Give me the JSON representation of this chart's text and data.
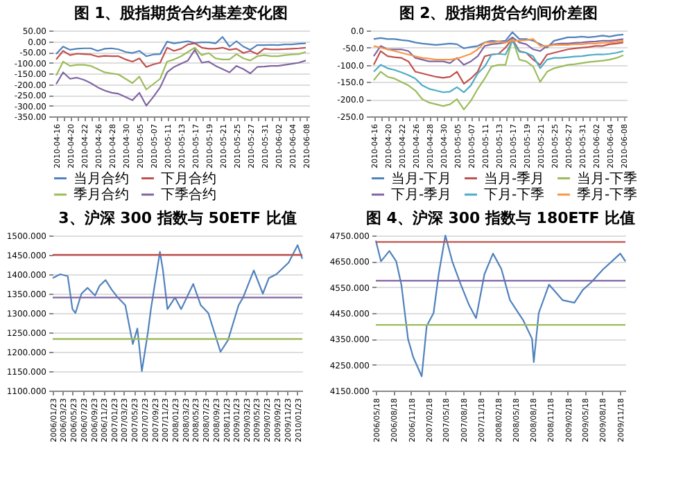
{
  "chart_data": [
    {
      "type": "line",
      "title": "图 1、股指期货合约基差变化图",
      "categories": [
        "2010-04-16",
        null,
        "2010-04-20",
        null,
        "2010-04-22",
        null,
        "2010-04-26",
        null,
        "2010-04-28",
        null,
        "2010-04-30",
        null,
        "2010-05-05",
        null,
        "2010-05-07",
        null,
        "2010-05-11",
        null,
        "2010-05-13",
        null,
        "2010-05-17",
        null,
        "2010-05-19",
        null,
        "2010-05-21",
        null,
        "2010-05-25",
        null,
        "2010-05-27",
        null,
        "2010-05-31",
        null,
        "2010-06-02",
        null,
        "2010-06-04",
        null,
        "2010-06-08"
      ],
      "series": [
        {
          "name": "当月合约",
          "color": "#4f81bd",
          "values": [
            -60,
            -25,
            -40,
            -35,
            -33,
            -33,
            -45,
            -35,
            -33,
            -38,
            -50,
            -55,
            -45,
            -70,
            -62,
            -60,
            -2,
            -10,
            -5,
            0,
            -8,
            -5,
            -5,
            -10,
            20,
            -25,
            0,
            -25,
            -40,
            -18,
            -18,
            -17,
            -18,
            -15,
            -15,
            -12,
            -10
          ]
        },
        {
          "name": "下月合约",
          "color": "#c0504d",
          "values": [
            -85,
            -45,
            -65,
            -58,
            -60,
            -62,
            -72,
            -68,
            -70,
            -70,
            -85,
            -95,
            -80,
            -120,
            -108,
            -100,
            -30,
            -45,
            -35,
            -15,
            -10,
            -30,
            -35,
            -35,
            -30,
            -40,
            -35,
            -55,
            -45,
            -60,
            -35,
            -38,
            -38,
            -37,
            -35,
            -33,
            -30
          ]
        },
        {
          "name": "季月合约",
          "color": "#9bbb59",
          "values": [
            -160,
            -95,
            -115,
            -110,
            -110,
            -115,
            -130,
            -145,
            -150,
            -155,
            -175,
            -195,
            -165,
            -225,
            -200,
            -175,
            -95,
            -85,
            -70,
            -50,
            -30,
            -65,
            -55,
            -80,
            -85,
            -85,
            -60,
            -80,
            -90,
            -70,
            -65,
            -70,
            -70,
            -65,
            -62,
            -60,
            -50
          ]
        },
        {
          "name": "下季合约",
          "color": "#8064a2",
          "values": [
            -200,
            -145,
            -175,
            -170,
            -180,
            -195,
            -215,
            -230,
            -240,
            -245,
            -260,
            -275,
            -240,
            -300,
            -260,
            -215,
            -145,
            -120,
            -105,
            -90,
            -40,
            -100,
            -95,
            -115,
            -130,
            -145,
            -115,
            -130,
            -150,
            -120,
            -118,
            -115,
            -115,
            -110,
            -105,
            -100,
            -90
          ]
        }
      ],
      "ylim": [
        -350,
        50
      ],
      "yticks": [
        {
          "value": 50,
          "label": "50.00"
        },
        {
          "value": 0,
          "label": "0.00"
        },
        {
          "value": -50,
          "label": "-50.00"
        },
        {
          "value": -100,
          "label": "-100.00"
        },
        {
          "value": -150,
          "label": "-150.00"
        },
        {
          "value": -200,
          "label": "-200.00"
        },
        {
          "value": -250,
          "label": "-250.00"
        },
        {
          "value": -300,
          "label": "-300.00"
        },
        {
          "value": -350,
          "label": "-350.00"
        }
      ],
      "grid": "y",
      "legend": "bottom"
    },
    {
      "type": "line",
      "title": "图 2、股指期货合约间价差图",
      "categories": [
        "2010-04-16",
        null,
        "2010-04-20",
        null,
        "2010-04-22",
        null,
        "2010-04-26",
        null,
        "2010-04-28",
        null,
        "2010-04-30",
        null,
        "2010-05-05",
        null,
        "2010-05-07",
        null,
        "2010-05-11",
        null,
        "2010-05-13",
        null,
        "2010-05-17",
        null,
        "2010-05-19",
        null,
        "2010-05-21",
        null,
        "2010-05-25",
        null,
        "2010-05-27",
        null,
        "2010-05-31",
        null,
        "2010-06-02",
        null,
        "2010-06-04",
        null,
        "2010-06-08"
      ],
      "series": [
        {
          "name": "当月-下月",
          "color": "#4f81bd",
          "values": [
            -25,
            -22,
            -25,
            -25,
            -28,
            -30,
            -35,
            -38,
            -40,
            -42,
            -40,
            -38,
            -40,
            -52,
            -48,
            -45,
            -35,
            -30,
            -32,
            -30,
            -5,
            -25,
            -25,
            -30,
            -40,
            -50,
            -30,
            -25,
            -20,
            -20,
            -18,
            -20,
            -18,
            -15,
            -18,
            -14,
            -12
          ]
        },
        {
          "name": "当月-季月",
          "color": "#c0504d",
          "values": [
            -100,
            -60,
            -75,
            -78,
            -80,
            -90,
            -120,
            -125,
            -130,
            -135,
            -138,
            -135,
            -120,
            -155,
            -140,
            -120,
            -75,
            -70,
            -68,
            -50,
            -25,
            -60,
            -65,
            -85,
            -100,
            -70,
            -65,
            -60,
            -55,
            -52,
            -50,
            -48,
            -45,
            -45,
            -40,
            -38,
            -35
          ]
        },
        {
          "name": "当月-下季",
          "color": "#9bbb59",
          "values": [
            -145,
            -120,
            -135,
            -140,
            -150,
            -160,
            -175,
            -200,
            -210,
            -215,
            -220,
            -215,
            -200,
            -230,
            -205,
            -170,
            -140,
            -105,
            -100,
            -100,
            -25,
            -85,
            -90,
            -105,
            -150,
            -120,
            -110,
            -105,
            -100,
            -98,
            -95,
            -92,
            -90,
            -88,
            -85,
            -80,
            -72
          ]
        },
        {
          "name": "下月-季月",
          "color": "#8064a2",
          "values": [
            -75,
            -45,
            -55,
            -55,
            -55,
            -60,
            -80,
            -85,
            -90,
            -90,
            -90,
            -95,
            -80,
            -100,
            -90,
            -75,
            -45,
            -40,
            -38,
            -35,
            -20,
            -35,
            -40,
            -55,
            -60,
            -45,
            -40,
            -38,
            -38,
            -36,
            -35,
            -33,
            -32,
            -30,
            -30,
            -28,
            -25
          ]
        },
        {
          "name": "下月-下季",
          "color": "#4bacc6",
          "values": [
            -120,
            -100,
            -110,
            -115,
            -122,
            -130,
            -140,
            -160,
            -170,
            -175,
            -180,
            -178,
            -165,
            -180,
            -160,
            -125,
            -105,
            -70,
            -68,
            -70,
            -30,
            -62,
            -65,
            -75,
            -110,
            -85,
            -80,
            -80,
            -78,
            -76,
            -75,
            -72,
            -70,
            -70,
            -68,
            -65,
            -60
          ]
        },
        {
          "name": "季月-下季",
          "color": "#f79646",
          "values": [
            -45,
            -50,
            -55,
            -60,
            -65,
            -70,
            -75,
            -80,
            -82,
            -85,
            -85,
            -85,
            -82,
            -75,
            -68,
            -55,
            -35,
            -35,
            -32,
            -35,
            -30,
            -30,
            -28,
            -25,
            -45,
            -45,
            -42,
            -42,
            -42,
            -40,
            -40,
            -38,
            -38,
            -36,
            -35,
            -33,
            -30
          ]
        }
      ],
      "ylim": [
        -250,
        0
      ],
      "yticks": [
        {
          "value": 0,
          "label": "0.0"
        },
        {
          "value": -50,
          "label": "-50.0"
        },
        {
          "value": -100,
          "label": "-100.0"
        },
        {
          "value": -150,
          "label": "-150.0"
        },
        {
          "value": -200,
          "label": "-200.0"
        },
        {
          "value": -250,
          "label": "-250.0"
        }
      ],
      "grid": "y",
      "legend": "bottom"
    },
    {
      "type": "line",
      "title": "3、沪深 300 指数与 50ETF 比值",
      "x": [
        "2006-01-23",
        "2006-03-09",
        "2006-04-23",
        "2006-05-21",
        "2006-06-08",
        "2006-07-14",
        "2006-08-19",
        "2006-10-03",
        "2006-10-30",
        "2006-12-05",
        "2007-01-11",
        "2007-02-16",
        "2007-04-02",
        "2007-05-17",
        "2007-06-13",
        "2007-07-10",
        "2007-08-15",
        "2007-09-02",
        "2007-10-26",
        "2007-11-13",
        "2007-12-10",
        "2008-01-24",
        "2008-03-01",
        "2008-05-12",
        "2008-06-26",
        "2008-08-10",
        "2008-10-22",
        "2008-12-06",
        "2009-02-07",
        "2009-03-06",
        "2009-05-09",
        "2009-07-02",
        "2009-08-07",
        "2009-09-21",
        "2009-12-03",
        "2010-01-26",
        "2010-02-23"
      ],
      "series": [
        {
          "color": "#4f81bd",
          "values": [
            1390,
            1400,
            1395,
            1310,
            1300,
            1350,
            1365,
            1345,
            1370,
            1385,
            1360,
            1340,
            1320,
            1220,
            1260,
            1150,
            1250,
            1310,
            1458,
            1410,
            1310,
            1340,
            1310,
            1375,
            1320,
            1300,
            1200,
            1230,
            1320,
            1340,
            1410,
            1350,
            1390,
            1400,
            1430,
            1475,
            1440
          ]
        }
      ],
      "xlim": [
        "2006-01-23",
        "2010-02-23"
      ],
      "xticks": [
        {
          "value": "2006-01-23",
          "label": "2006/01/23"
        },
        {
          "value": "2006-03-23",
          "label": "2006/03/23"
        },
        {
          "value": "2006-05-23",
          "label": "2006/05/23"
        },
        {
          "value": "2006-07-23",
          "label": "2006/07/23"
        },
        {
          "value": "2006-09-23",
          "label": "2006/09/23"
        },
        {
          "value": "2006-11-23",
          "label": "2006/11/23"
        },
        {
          "value": "2007-01-23",
          "label": "2007/01/23"
        },
        {
          "value": "2007-03-23",
          "label": "2007/03/23"
        },
        {
          "value": "2007-05-23",
          "label": "2007/05/23"
        },
        {
          "value": "2007-07-23",
          "label": "2007/07/23"
        },
        {
          "value": "2007-09-23",
          "label": "2007/09/23"
        },
        {
          "value": "2007-11-23",
          "label": "2007/11/23"
        },
        {
          "value": "2008-01-23",
          "label": "2008/01/23"
        },
        {
          "value": "2008-03-23",
          "label": "2008/03/23"
        },
        {
          "value": "2008-05-23",
          "label": "2008/05/23"
        },
        {
          "value": "2008-07-23",
          "label": "2008/07/23"
        },
        {
          "value": "2008-09-23",
          "label": "2008/09/23"
        },
        {
          "value": "2008-11-23",
          "label": "2008/11/23"
        },
        {
          "value": "2009-01-23",
          "label": "2009/01/23"
        },
        {
          "value": "2009-03-23",
          "label": "2009/03/23"
        },
        {
          "value": "2009-05-23",
          "label": "2009/05/23"
        },
        {
          "value": "2009-07-23",
          "label": "2009/07/23"
        },
        {
          "value": "2009-09-23",
          "label": "2009/09/23"
        },
        {
          "value": "2009-11-23",
          "label": "2009/11/23"
        },
        {
          "value": "2010-01-23",
          "label": "2010/01/23"
        }
      ],
      "ylim": [
        1100,
        1500
      ],
      "yticks": [
        {
          "value": 1500,
          "label": "1500.000"
        },
        {
          "value": 1450,
          "label": "1450.000"
        },
        {
          "value": 1400,
          "label": "1400.000"
        },
        {
          "value": 1350,
          "label": "1350.000"
        },
        {
          "value": 1300,
          "label": "1300.000"
        },
        {
          "value": 1250,
          "label": "1250.000"
        },
        {
          "value": 1200,
          "label": "1200.000"
        },
        {
          "value": 1150,
          "label": "1150.000"
        },
        {
          "value": 1100,
          "label": "1100.000"
        }
      ],
      "ref_lines": [
        {
          "axis": "y",
          "value": 1450,
          "color": "#c0504d"
        },
        {
          "axis": "y",
          "value": 1340,
          "color": "#8064a2"
        },
        {
          "axis": "y",
          "value": 1233,
          "color": "#9bbb59"
        }
      ],
      "grid": "y"
    },
    {
      "type": "line",
      "title": "图 4、沪深 300 指数与 180ETF 比值",
      "x": [
        "2006-05-18",
        "2006-06-14",
        "2006-07-28",
        "2006-09-02",
        "2006-09-29",
        "2006-11-03",
        "2006-11-30",
        "2007-01-14",
        "2007-02-09",
        "2007-03-17",
        "2007-04-13",
        "2007-05-18",
        "2007-06-23",
        "2007-08-07",
        "2007-09-20",
        "2007-10-26",
        "2007-12-09",
        "2008-01-23",
        "2008-03-07",
        "2008-04-21",
        "2008-07-01",
        "2008-08-15",
        "2008-08-24",
        "2008-09-19",
        "2008-11-12",
        "2009-01-22",
        "2009-03-25",
        "2009-05-09",
        "2009-06-23",
        "2009-08-24",
        "2009-10-08",
        "2009-11-21",
        "2009-12-18"
      ],
      "series": [
        {
          "color": "#4f81bd",
          "values": [
            4730,
            4650,
            4690,
            4650,
            4560,
            4350,
            4280,
            4205,
            4400,
            4450,
            4600,
            4750,
            4650,
            4560,
            4480,
            4430,
            4600,
            4680,
            4620,
            4500,
            4420,
            4350,
            4260,
            4450,
            4560,
            4500,
            4490,
            4540,
            4570,
            4620,
            4650,
            4680,
            4650
          ]
        }
      ],
      "xlim": [
        "2006-05-18",
        "2009-12-18"
      ],
      "xticks": [
        {
          "value": "2006-05-18",
          "label": "2006/05/18"
        },
        {
          "value": "2006-08-18",
          "label": "2006/08/18"
        },
        {
          "value": "2006-11-18",
          "label": "2006/11/18"
        },
        {
          "value": "2007-02-18",
          "label": "2007/02/18"
        },
        {
          "value": "2007-05-18",
          "label": "2007/05/18"
        },
        {
          "value": "2007-08-18",
          "label": "2007/08/18"
        },
        {
          "value": "2007-11-18",
          "label": "2007/11/18"
        },
        {
          "value": "2008-02-18",
          "label": "2008/02/18"
        },
        {
          "value": "2008-05-18",
          "label": "2008/05/18"
        },
        {
          "value": "2008-08-18",
          "label": "2008/08/18"
        },
        {
          "value": "2008-11-18",
          "label": "2008/11/18"
        },
        {
          "value": "2009-02-18",
          "label": "2009/02/18"
        },
        {
          "value": "2009-05-18",
          "label": "2009/05/18"
        },
        {
          "value": "2009-08-18",
          "label": "2009/08/18"
        },
        {
          "value": "2009-11-18",
          "label": "2009/11/18"
        }
      ],
      "ylim": [
        4150,
        4750
      ],
      "yticks": [
        {
          "value": 4750,
          "label": "4750.000"
        },
        {
          "value": 4650,
          "label": "4650.000"
        },
        {
          "value": 4550,
          "label": "4550.000"
        },
        {
          "value": 4450,
          "label": "4450.000"
        },
        {
          "value": 4350,
          "label": "4350.000"
        },
        {
          "value": 4250,
          "label": "4250.000"
        },
        {
          "value": 4150,
          "label": "4150.000"
        }
      ],
      "ref_lines": [
        {
          "axis": "y",
          "value": 4725,
          "color": "#c0504d"
        },
        {
          "axis": "y",
          "value": 4575,
          "color": "#8064a2"
        },
        {
          "axis": "y",
          "value": 4404,
          "color": "#9bbb59"
        }
      ],
      "grid": "y"
    }
  ]
}
